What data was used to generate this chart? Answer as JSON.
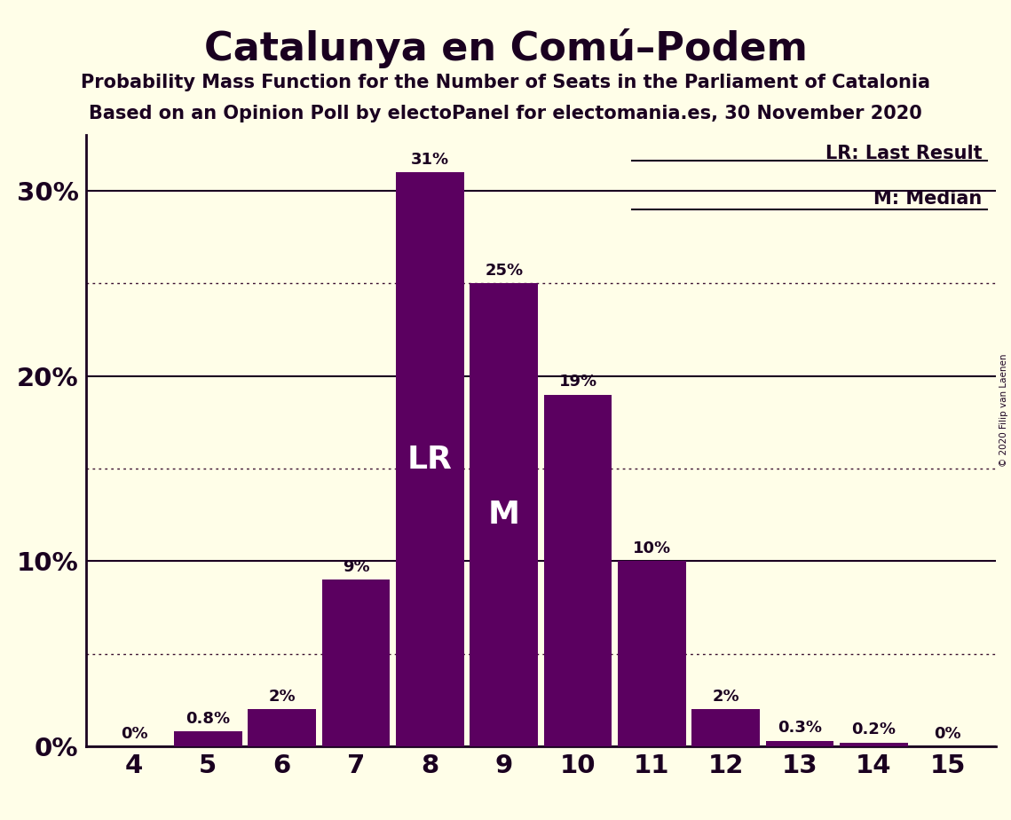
{
  "title": "Catalunya en Comú–Podem",
  "subtitle1": "Probability Mass Function for the Number of Seats in the Parliament of Catalonia",
  "subtitle2": "Based on an Opinion Poll by electoPanel for electomania.es, 30 November 2020",
  "copyright": "© 2020 Filip van Laenen",
  "seats": [
    4,
    5,
    6,
    7,
    8,
    9,
    10,
    11,
    12,
    13,
    14,
    15
  ],
  "values": [
    0.0,
    0.8,
    2.0,
    9.0,
    31.0,
    25.0,
    19.0,
    10.0,
    2.0,
    0.3,
    0.2,
    0.0
  ],
  "labels": [
    "0%",
    "0.8%",
    "2%",
    "9%",
    "31%",
    "25%",
    "19%",
    "10%",
    "2%",
    "0.3%",
    "0.2%",
    "0%"
  ],
  "bar_color": "#5B0060",
  "background_color": "#FFFEE8",
  "text_color": "#1a0020",
  "lr_seat": 8,
  "median_seat": 9,
  "yticks_solid": [
    0,
    10,
    20,
    30
  ],
  "yticks_dotted": [
    5,
    15,
    25
  ],
  "ylim": [
    0,
    33
  ],
  "legend_lr": "LR: Last Result",
  "legend_m": "M: Median"
}
